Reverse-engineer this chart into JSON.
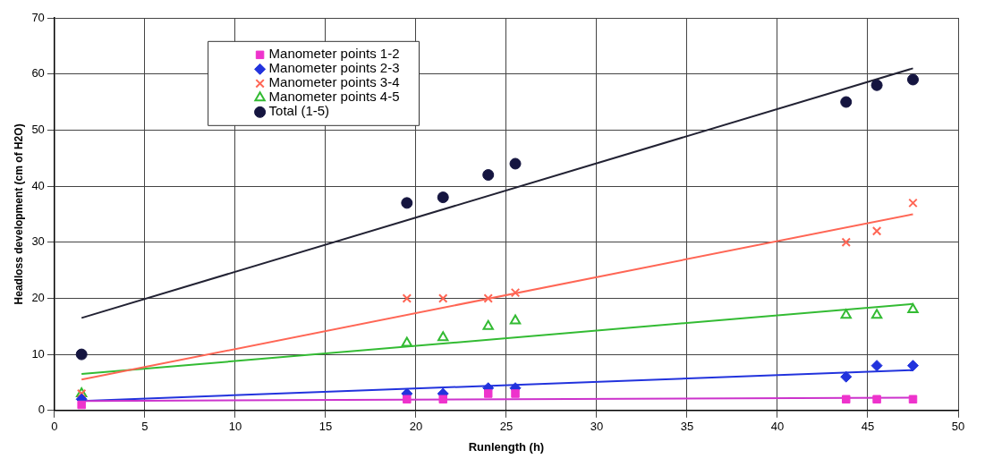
{
  "chart_data": {
    "type": "scatter",
    "xlabel": "Runlength (h)",
    "ylabel": "Headloss development (cm of H2O)",
    "xlim": [
      0,
      50
    ],
    "xticks": [
      0,
      5,
      10,
      15,
      20,
      25,
      30,
      35,
      40,
      45,
      50
    ],
    "ylim": [
      0,
      70
    ],
    "yticks": [
      0,
      10,
      20,
      30,
      40,
      50,
      60,
      70
    ],
    "grid": true,
    "legend": "top left",
    "series": [
      {
        "name": "Manometer points 1-2",
        "color": "#ee33cc",
        "marker": "square",
        "x": [
          1.5,
          19.5,
          21.5,
          24,
          25.5,
          43.8,
          45.5,
          47.5
        ],
        "values": [
          1,
          2,
          2,
          3,
          3,
          2,
          2,
          2
        ]
      },
      {
        "name": "Manometer points 2-3",
        "color": "#2233dd",
        "marker": "diamond",
        "x": [
          1.5,
          19.5,
          21.5,
          24,
          25.5,
          43.8,
          45.5,
          47.5
        ],
        "values": [
          2,
          3,
          3,
          4,
          4,
          6,
          8,
          8
        ]
      },
      {
        "name": "Manometer points 3-4",
        "color": "#ff6655",
        "marker": "cross",
        "x": [
          1.5,
          19.5,
          21.5,
          24,
          25.5,
          43.8,
          45.5,
          47.5
        ],
        "values": [
          3,
          20,
          20,
          20,
          21,
          30,
          32,
          37
        ]
      },
      {
        "name": "Manometer points 4-5",
        "color": "#33bb33",
        "marker": "triangle",
        "x": [
          1.5,
          19.5,
          21.5,
          24,
          25.5,
          43.8,
          45.5,
          47.5
        ],
        "values": [
          3,
          12,
          13,
          15,
          16,
          17,
          17,
          18
        ]
      },
      {
        "name": "Total (1-5)",
        "color": "#151540",
        "marker": "circle",
        "x": [
          1.5,
          19.5,
          21.5,
          24,
          25.5,
          43.8,
          45.5,
          47.5
        ],
        "values": [
          10,
          37,
          38,
          42,
          44,
          55,
          58,
          59
        ]
      },
      {
        "type": "line",
        "color": "#cc33cc",
        "marker": "none",
        "x": [
          1.5,
          47.5
        ],
        "values": [
          1.7,
          2.3
        ]
      },
      {
        "type": "line",
        "color": "#2233dd",
        "marker": "none",
        "x": [
          1.5,
          47.5
        ],
        "values": [
          1.7,
          7.2
        ]
      },
      {
        "type": "line",
        "color": "#ff6655",
        "marker": "none",
        "x": [
          1.5,
          47.5
        ],
        "values": [
          5.5,
          35
        ]
      },
      {
        "type": "line",
        "color": "#33bb33",
        "marker": "none",
        "x": [
          1.5,
          47.5
        ],
        "values": [
          6.5,
          19
        ]
      },
      {
        "type": "line",
        "color": "#222233",
        "marker": "none",
        "x": [
          1.5,
          47.5
        ],
        "values": [
          16.5,
          61
        ]
      }
    ]
  }
}
